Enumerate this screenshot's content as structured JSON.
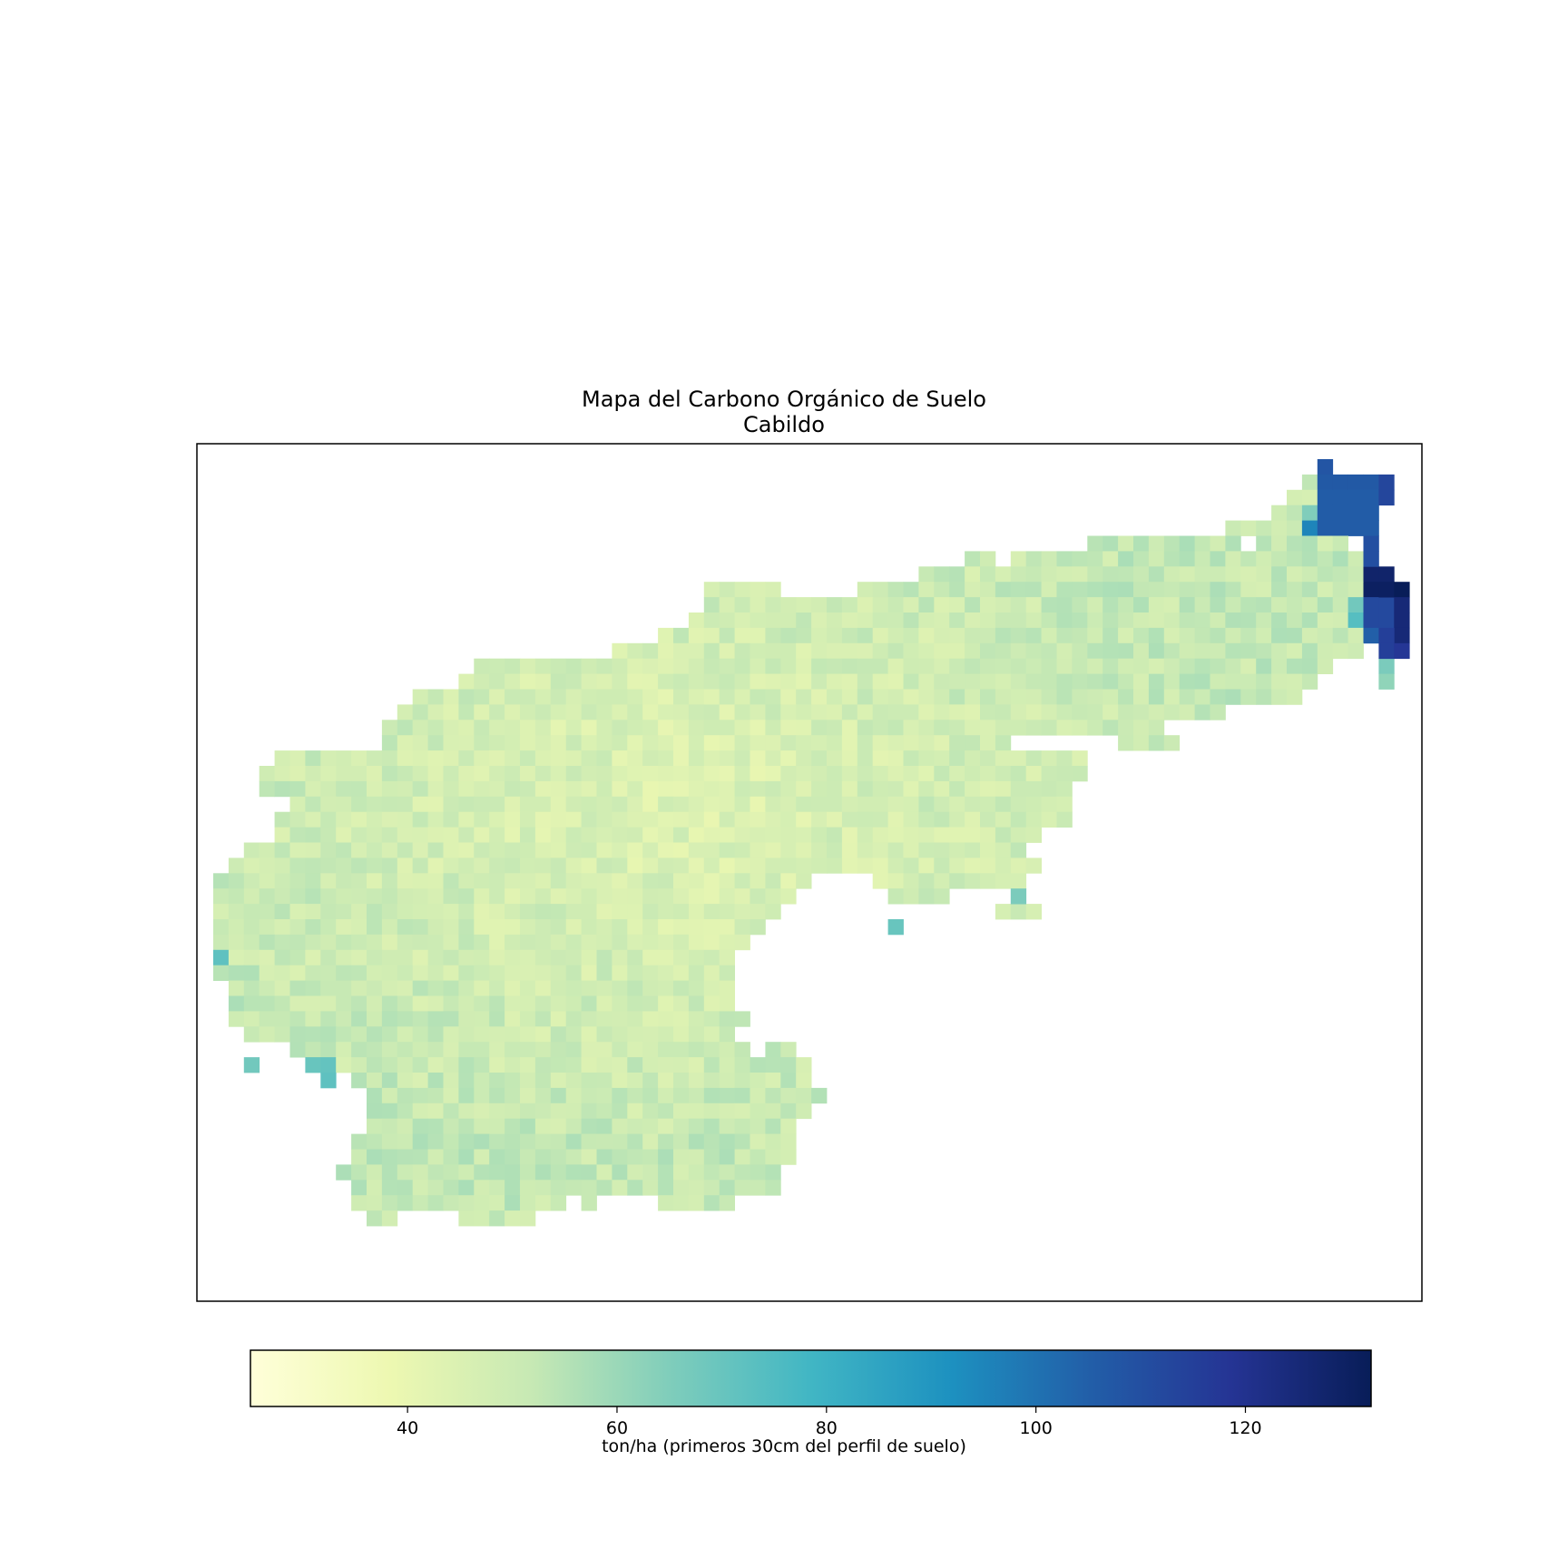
{
  "title": "Mapa del Carbono Orgánico de Suelo",
  "subtitle": "Cabildo",
  "colorbar": {
    "label": "ton/ha (primeros 30cm del perfil de suelo)",
    "ticks": [
      "40",
      "60",
      "80",
      "100",
      "120"
    ],
    "tick_values": [
      40,
      60,
      80,
      100,
      120
    ],
    "range": [
      25,
      132
    ],
    "colormap": "YlGnBu"
  },
  "chart_data": {
    "type": "heatmap",
    "title": "Mapa del Carbono Orgánico de Suelo\nCabildo",
    "value_range": [
      25,
      132
    ],
    "colorbar_label": "ton/ha (primeros 30cm del perfil de suelo)",
    "colorbar_ticks": [
      40,
      60,
      80,
      100,
      120
    ],
    "colormap": [
      "#ffffd9",
      "#edf8b1",
      "#c7e9b4",
      "#7fcdbb",
      "#41b6c4",
      "#1d91c0",
      "#225ea8",
      "#253494",
      "#081d58"
    ],
    "region_summary": {
      "typical_range": [
        35,
        58
      ],
      "southwest_hotspot": 72,
      "northeast_high": [
        100,
        132
      ]
    },
    "grid_cols": 78,
    "grid_rows": 54,
    "row_spans": [
      [
        [
          72,
          72
        ]
      ],
      [
        [
          71,
          75
        ]
      ],
      [
        [
          70,
          75
        ]
      ],
      [
        [
          69,
          74
        ]
      ],
      [
        [
          66,
          74
        ]
      ],
      [
        [
          57,
          66
        ],
        [
          68,
          73
        ]
      ],
      [
        [
          49,
          50
        ],
        [
          52,
          74
        ]
      ],
      [
        [
          46,
          75
        ]
      ],
      [
        [
          32,
          36
        ],
        [
          42,
          75
        ]
      ],
      [
        [
          32,
          76
        ]
      ],
      [
        [
          31,
          76
        ]
      ],
      [
        [
          29,
          75
        ]
      ],
      [
        [
          26,
          74
        ]
      ],
      [
        [
          17,
          72
        ]
      ],
      [
        [
          16,
          71
        ]
      ],
      [
        [
          13,
          70
        ]
      ],
      [
        [
          12,
          65
        ]
      ],
      [
        [
          11,
          61
        ]
      ],
      [
        [
          11,
          51
        ],
        [
          59,
          62
        ]
      ],
      [
        [
          4,
          56
        ]
      ],
      [
        [
          3,
          56
        ]
      ],
      [
        [
          3,
          55
        ]
      ],
      [
        [
          5,
          55
        ]
      ],
      [
        [
          4,
          55
        ]
      ],
      [
        [
          4,
          53
        ]
      ],
      [
        [
          2,
          52
        ]
      ],
      [
        [
          1,
          53
        ]
      ],
      [
        [
          0,
          38
        ],
        [
          43,
          49
        ],
        [
          50,
          52
        ]
      ],
      [
        [
          0,
          37
        ],
        [
          44,
          47
        ]
      ],
      [
        [
          0,
          36
        ],
        [
          51,
          53
        ]
      ],
      [
        [
          0,
          35
        ]
      ],
      [
        [
          0,
          34
        ]
      ],
      [
        [
          0,
          33
        ]
      ],
      [
        [
          0,
          33
        ]
      ],
      [
        [
          1,
          33
        ]
      ],
      [
        [
          1,
          33
        ]
      ],
      [
        [
          1,
          34
        ]
      ],
      [
        [
          2,
          33
        ]
      ],
      [
        [
          5,
          34
        ],
        [
          36,
          37
        ]
      ],
      [
        [
          7,
          38
        ]
      ],
      [
        [
          9,
          38
        ]
      ],
      [
        [
          10,
          39
        ]
      ],
      [
        [
          10,
          38
        ]
      ],
      [
        [
          10,
          37
        ]
      ],
      [
        [
          9,
          37
        ]
      ],
      [
        [
          9,
          37
        ]
      ],
      [
        [
          8,
          36
        ]
      ],
      [
        [
          9,
          36
        ]
      ],
      [
        [
          9,
          14
        ],
        [
          15,
          22
        ],
        [
          24,
          24
        ],
        [
          29,
          33
        ]
      ],
      [
        [
          10,
          11
        ],
        [
          16,
          19
        ],
        [
          20,
          20
        ]
      ]
    ],
    "hotspots": [
      {
        "col": 0,
        "row": 32,
        "value": 72
      },
      {
        "col": 6,
        "row": 39,
        "value": 70
      },
      {
        "col": 7,
        "row": 39,
        "value": 71
      },
      {
        "col": 7,
        "row": 40,
        "value": 72
      },
      {
        "col": 2,
        "row": 39,
        "value": 68
      },
      {
        "col": 44,
        "row": 30,
        "value": 70
      },
      {
        "col": 52,
        "row": 28,
        "value": 66
      },
      {
        "col": 71,
        "row": 3,
        "value": 65
      },
      {
        "col": 71,
        "row": 4,
        "value": 95
      },
      {
        "col": 74,
        "row": 9,
        "value": 68
      },
      {
        "col": 74,
        "row": 10,
        "value": 74
      },
      {
        "col": 76,
        "row": 13,
        "value": 66
      },
      {
        "col": 76,
        "row": 14,
        "value": 62
      }
    ],
    "high_region": [
      {
        "cols": [
          72,
          72
        ],
        "rows": [
          0,
          0
        ],
        "value": 108
      },
      {
        "cols": [
          72,
          75
        ],
        "rows": [
          1,
          1
        ],
        "value": 107
      },
      {
        "cols": [
          76,
          76
        ],
        "rows": [
          1,
          2
        ],
        "value": 113
      },
      {
        "cols": [
          72,
          75
        ],
        "rows": [
          2,
          4
        ],
        "value": 106
      },
      {
        "cols": [
          75,
          75
        ],
        "rows": [
          5,
          6
        ],
        "value": 110
      },
      {
        "cols": [
          75,
          76
        ],
        "rows": [
          7,
          7
        ],
        "value": 128
      },
      {
        "cols": [
          75,
          76
        ],
        "rows": [
          8,
          8
        ],
        "value": 130
      },
      {
        "cols": [
          77,
          77
        ],
        "rows": [
          8,
          8
        ],
        "value": 132
      },
      {
        "cols": [
          75,
          76
        ],
        "rows": [
          9,
          10
        ],
        "value": 112
      },
      {
        "cols": [
          77,
          77
        ],
        "rows": [
          9,
          11
        ],
        "value": 125
      },
      {
        "cols": [
          76,
          76
        ],
        "rows": [
          11,
          12
        ],
        "value": 115
      },
      {
        "cols": [
          75,
          75
        ],
        "rows": [
          11,
          11
        ],
        "value": 105
      },
      {
        "cols": [
          77,
          77
        ],
        "rows": [
          12,
          12
        ],
        "value": 118
      }
    ]
  }
}
